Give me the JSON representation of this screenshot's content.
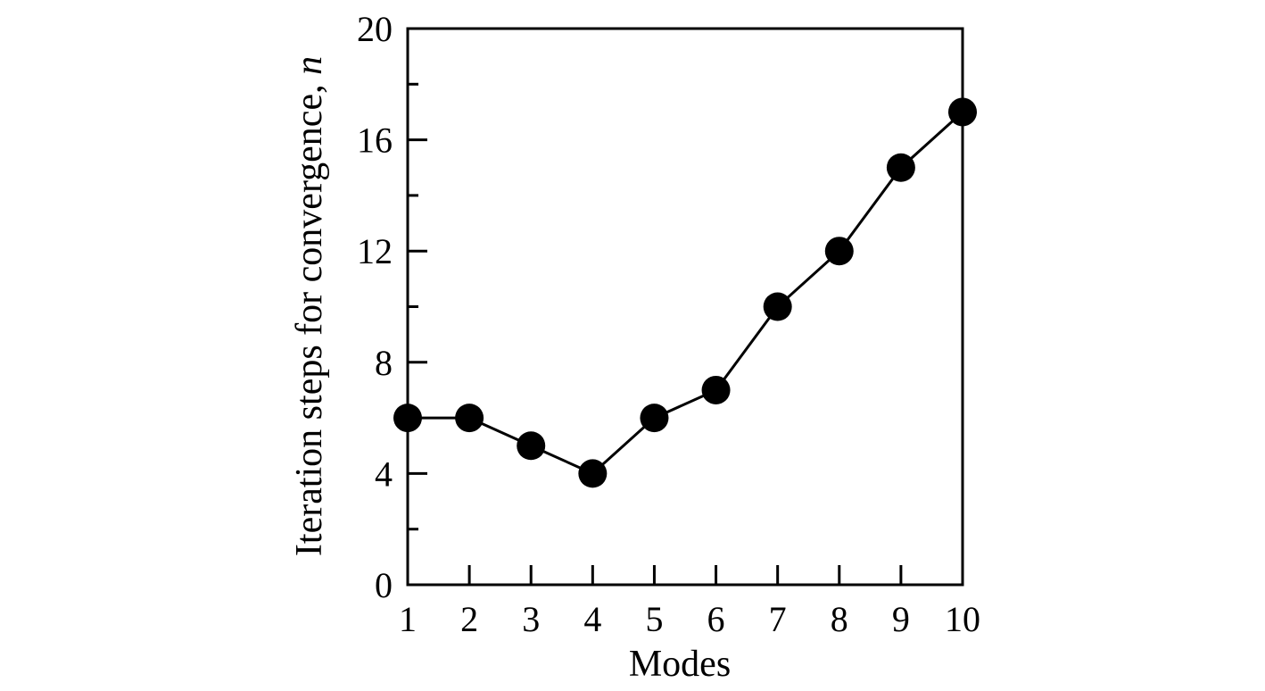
{
  "chart_data": {
    "type": "line",
    "title": "",
    "xlabel": "Modes",
    "ylabel_text": "Iteration steps for convergence, ",
    "ylabel_variable": "n",
    "xlim": [
      1,
      10
    ],
    "ylim": [
      0,
      20
    ],
    "x_ticks": [
      1,
      2,
      3,
      4,
      5,
      6,
      7,
      8,
      9,
      10
    ],
    "x_tick_labels": [
      "1",
      "2",
      "3",
      "4",
      "5",
      "6",
      "7",
      "8",
      "9",
      "10"
    ],
    "y_ticks": [
      0,
      4,
      8,
      12,
      16,
      20
    ],
    "y_tick_labels": [
      "0",
      "4",
      "8",
      "12",
      "16",
      "20"
    ],
    "y_minor_step": 2,
    "grid": false,
    "legend": "none",
    "series": [
      {
        "x": [
          1,
          2,
          3,
          4,
          5,
          6,
          7,
          8,
          9,
          10
        ],
        "values": [
          6,
          6,
          5,
          4,
          6,
          7,
          10,
          12,
          15,
          17
        ],
        "marker": "filled-circle",
        "color": "#000000"
      }
    ]
  }
}
